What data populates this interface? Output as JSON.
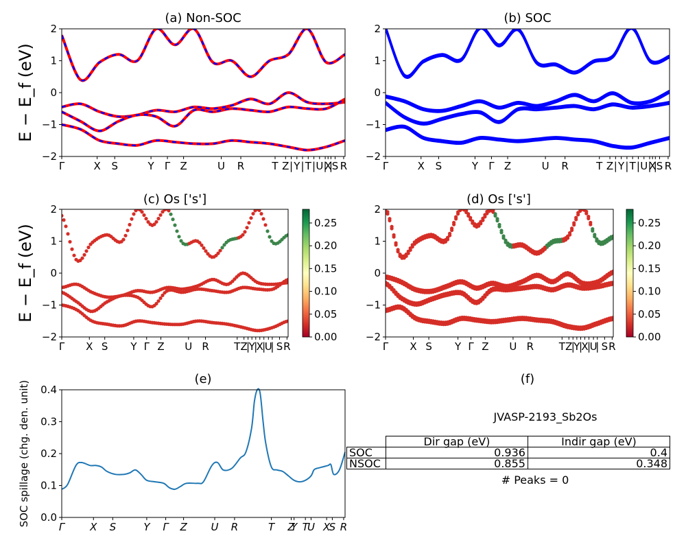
{
  "chart_data": [
    {
      "type": "line",
      "panel": "a",
      "title": "(a) Non-SOC",
      "ylabel": "E − E_f (eV)",
      "ylim": [
        -2,
        2
      ],
      "yticks": [
        "2",
        "1",
        "0",
        "−1",
        "−2"
      ],
      "xticks": [
        "Γ",
        "X",
        "S",
        "Y",
        "Γ",
        "Z",
        "U",
        "R",
        "T",
        "Z",
        "|",
        "Y",
        "|",
        "T",
        "|",
        "U",
        "|",
        "X",
        "|",
        "S",
        "R"
      ],
      "series": [
        {
          "style": "red solid with blue dashes",
          "values": [
            -0.45,
            -0.35,
            -0.6,
            -0.75,
            -0.7,
            -0.55,
            -0.6,
            -0.45,
            -0.5,
            -0.4,
            -0.2,
            -0.35,
            0.0,
            -0.3,
            -0.35,
            -0.3
          ]
        },
        {
          "style": "red solid with blue dashes",
          "values": [
            -0.6,
            -0.9,
            -1.2,
            -0.9,
            -0.7,
            -0.75,
            -1.05,
            -0.55,
            -0.6,
            -0.5,
            -0.55,
            -0.6,
            -0.45,
            -0.5,
            -0.5,
            -0.2
          ]
        },
        {
          "style": "red solid with blue dashes",
          "values": [
            -1.0,
            -1.15,
            -1.5,
            -1.6,
            -1.65,
            -1.5,
            -1.55,
            -1.6,
            -1.6,
            -1.5,
            -1.55,
            -1.6,
            -1.7,
            -1.8,
            -1.7,
            -1.5
          ]
        },
        {
          "style": "red solid with blue dashes",
          "values": [
            1.8,
            0.4,
            0.95,
            1.2,
            1.0,
            2.0,
            1.5,
            2.0,
            0.95,
            1.0,
            0.5,
            1.0,
            1.2,
            2.0,
            0.95,
            1.2
          ]
        }
      ]
    },
    {
      "type": "line",
      "panel": "b",
      "title": "(b) SOC",
      "ylim": [
        -2,
        2
      ],
      "yticks": [
        "2",
        "1",
        "0",
        "−1",
        "−2"
      ],
      "xticks": [
        "Γ",
        "X",
        "S",
        "Y",
        "Γ",
        "Z",
        "U",
        "R",
        "T",
        "Z",
        "|",
        "Y",
        "|",
        "T",
        "|",
        "U",
        "|",
        "X",
        "|",
        "S",
        "R"
      ],
      "series": [
        {
          "style": "blue",
          "values": [
            -0.15,
            -0.3,
            -0.55,
            -0.6,
            -0.45,
            -0.3,
            -0.5,
            -0.35,
            -0.45,
            -0.3,
            -0.1,
            -0.3,
            -0.05,
            -0.35,
            -0.3,
            0.0
          ]
        },
        {
          "style": "blue",
          "values": [
            -0.35,
            -0.8,
            -1.0,
            -0.85,
            -0.7,
            -0.65,
            -0.95,
            -0.55,
            -0.55,
            -0.5,
            -0.45,
            -0.55,
            -0.4,
            -0.5,
            -0.45,
            -0.35
          ]
        },
        {
          "style": "blue",
          "values": [
            -1.2,
            -1.1,
            -1.45,
            -1.55,
            -1.6,
            -1.45,
            -1.5,
            -1.55,
            -1.5,
            -1.45,
            -1.5,
            -1.55,
            -1.7,
            -1.75,
            -1.6,
            -1.45
          ]
        },
        {
          "style": "blue",
          "values": [
            2.0,
            0.5,
            0.95,
            1.15,
            1.0,
            2.0,
            1.45,
            1.95,
            0.9,
            0.85,
            0.6,
            0.95,
            1.1,
            2.0,
            0.95,
            1.1
          ]
        }
      ]
    },
    {
      "type": "scatter",
      "panel": "c",
      "title": "(c)  Os ['s']",
      "ylabel": "E − E_f (eV)",
      "ylim": [
        -2,
        2
      ],
      "yticks": [
        "2",
        "1",
        "0",
        "−1",
        "−2"
      ],
      "xticks": [
        "Γ",
        "X",
        "S",
        "Y",
        "Γ",
        "Z",
        "U",
        "R",
        "T",
        "Z",
        "|",
        "Y",
        "|",
        "X",
        "|",
        "U",
        "|",
        "S",
        "R"
      ],
      "colorbar": {
        "min": 0.0,
        "max": 0.28,
        "ticks": [
          "0.25",
          "0.20",
          "0.15",
          "0.10",
          "0.05",
          "0.00"
        ]
      }
    },
    {
      "type": "scatter",
      "panel": "d",
      "title": "(d) Os ['s']",
      "ylim": [
        -2,
        2
      ],
      "yticks": [
        "2",
        "1",
        "0",
        "−1",
        "−2"
      ],
      "xticks": [
        "Γ",
        "X",
        "S",
        "Y",
        "Γ",
        "Z",
        "U",
        "R",
        "T",
        "Z",
        "|",
        "Y",
        "|",
        "X",
        "|",
        "U",
        "|",
        "S",
        "R"
      ],
      "colorbar": {
        "min": 0.0,
        "max": 0.28,
        "ticks": [
          "0.25",
          "0.20",
          "0.15",
          "0.10",
          "0.05",
          "0.00"
        ]
      }
    },
    {
      "type": "line",
      "panel": "e",
      "title": "(e)",
      "ylabel": "SOC spillage (chg. den. unit)",
      "ylim": [
        0.0,
        0.43
      ],
      "yticks": [
        "0.4",
        "0.3",
        "0.2",
        "0.1",
        "0.0"
      ],
      "xticks": [
        "Γ",
        "X",
        "S",
        "Y",
        "Γ",
        "Z",
        "U",
        "R",
        "T",
        "Z",
        "Y",
        "T",
        "U",
        "X",
        "S",
        "R"
      ],
      "color": "#1f77b4",
      "values": [
        [
          0.0,
          0.095
        ],
        [
          0.02,
          0.11
        ],
        [
          0.05,
          0.175
        ],
        [
          0.07,
          0.185
        ],
        [
          0.1,
          0.175
        ],
        [
          0.12,
          0.175
        ],
        [
          0.14,
          0.17
        ],
        [
          0.16,
          0.155
        ],
        [
          0.19,
          0.145
        ],
        [
          0.22,
          0.145
        ],
        [
          0.24,
          0.15
        ],
        [
          0.26,
          0.16
        ],
        [
          0.28,
          0.145
        ],
        [
          0.3,
          0.125
        ],
        [
          0.33,
          0.12
        ],
        [
          0.36,
          0.115
        ],
        [
          0.38,
          0.1
        ],
        [
          0.4,
          0.095
        ],
        [
          0.42,
          0.105
        ],
        [
          0.44,
          0.115
        ],
        [
          0.48,
          0.115
        ],
        [
          0.5,
          0.12
        ],
        [
          0.53,
          0.175
        ],
        [
          0.55,
          0.185
        ],
        [
          0.57,
          0.16
        ],
        [
          0.6,
          0.165
        ],
        [
          0.63,
          0.2
        ],
        [
          0.65,
          0.22
        ],
        [
          0.67,
          0.3
        ],
        [
          0.68,
          0.39
        ],
        [
          0.69,
          0.43
        ],
        [
          0.7,
          0.42
        ],
        [
          0.71,
          0.33
        ],
        [
          0.72,
          0.25
        ],
        [
          0.74,
          0.17
        ],
        [
          0.76,
          0.16
        ],
        [
          0.78,
          0.155
        ],
        [
          0.8,
          0.14
        ],
        [
          0.82,
          0.125
        ],
        [
          0.84,
          0.12
        ],
        [
          0.86,
          0.125
        ],
        [
          0.88,
          0.14
        ],
        [
          0.89,
          0.16
        ],
        [
          0.9,
          0.165
        ],
        [
          0.92,
          0.17
        ],
        [
          0.94,
          0.175
        ],
        [
          0.95,
          0.178
        ],
        [
          0.96,
          0.145
        ],
        [
          0.98,
          0.16
        ],
        [
          1.0,
          0.22
        ]
      ]
    }
  ],
  "panel_f": {
    "title": "(f)",
    "material": "JVASP-2193_Sb2Os",
    "table": {
      "col_headers": [
        "Dir gap (eV)",
        "Indir gap (eV)"
      ],
      "rows": [
        {
          "label": "SOC",
          "dir": "0.936",
          "indir": "0.4"
        },
        {
          "label": "NSOC",
          "dir": "0.855",
          "indir": "0.348"
        }
      ]
    },
    "peaks": "# Peaks = 0"
  },
  "colors": {
    "nonsoc_line": "#ff0000",
    "nonsoc_dash": "#0000ff",
    "soc_line": "#0000ff",
    "spillage": "#1f77b4"
  }
}
